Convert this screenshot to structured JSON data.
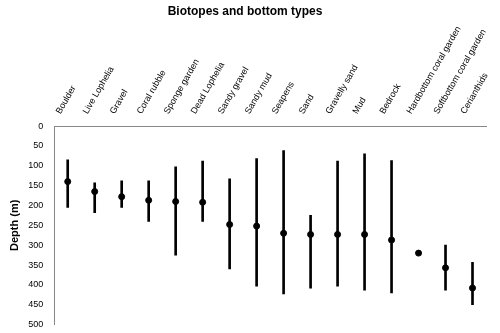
{
  "chart_data": {
    "type": "range",
    "title": "Biotopes and bottom types",
    "y_label": "Depth (m)",
    "categories": [
      "Boulder",
      "Live Lophelia",
      "Gravel",
      "Coral rubble",
      "Sponge garden",
      "Dead Lophelia",
      "Sandy gravel",
      "Sandy mud",
      "Seapens",
      "Sand",
      "Gravelly sand",
      "Mud",
      "Bedrock",
      "Hardbottom coral garden",
      "Softbottom coral garden",
      "Cerianthids"
    ],
    "values": [
      140,
      165,
      178,
      187,
      190,
      192,
      248,
      252,
      270,
      273,
      273,
      273,
      287,
      320,
      357,
      408
    ],
    "low": [
      85,
      143,
      138,
      138,
      103,
      88,
      133,
      82,
      62,
      225,
      88,
      70,
      87,
      null,
      300,
      343
    ],
    "high": [
      205,
      218,
      205,
      240,
      325,
      240,
      360,
      403,
      423,
      408,
      403,
      413,
      420,
      null,
      413,
      450
    ],
    "color": "#000000",
    "ylim": [
      0,
      500
    ],
    "yticks": [
      0,
      50,
      100,
      150,
      200,
      250,
      300,
      350,
      400,
      450,
      500
    ],
    "grid": false
  }
}
